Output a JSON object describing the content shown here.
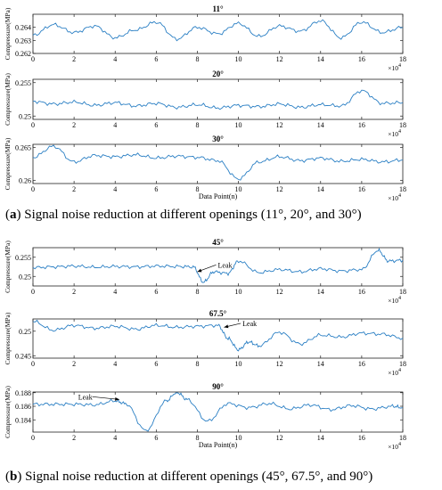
{
  "captions": [
    {
      "label": "a",
      "text": "Signal noise reduction at different openings (11°, 20°, and 30°)"
    },
    {
      "label": "b",
      "text": "Signal noise reduction at different openings (45°, 67.5°, and 90°)"
    }
  ],
  "chart_data": [
    {
      "type": "line",
      "title": "11°",
      "ylabel": "Compressure(MPa)",
      "xlabel": "",
      "xlim": [
        0,
        18
      ],
      "ylim": [
        0.262,
        0.265
      ],
      "yticks": [
        0.262,
        0.263,
        0.264
      ],
      "xticks": [
        0,
        2,
        4,
        6,
        8,
        10,
        12,
        14,
        16,
        18
      ],
      "x_exponent": "×10",
      "x_exponent_power": "4",
      "color": "#2a7fc4",
      "x": [
        0,
        1,
        2,
        3,
        4,
        5,
        6,
        7,
        8,
        9,
        10,
        11,
        12,
        13,
        14,
        15,
        16,
        17,
        18
      ],
      "values": [
        0.2634,
        0.2642,
        0.2636,
        0.2641,
        0.2632,
        0.2638,
        0.2644,
        0.2631,
        0.264,
        0.2635,
        0.2643,
        0.2633,
        0.2641,
        0.2637,
        0.2645,
        0.2632,
        0.2644,
        0.2636,
        0.264
      ],
      "annotations": []
    },
    {
      "type": "line",
      "title": "20°",
      "ylabel": "Compressure(MPa)",
      "xlabel": "",
      "xlim": [
        0,
        18
      ],
      "ylim": [
        0.2495,
        0.2555
      ],
      "yticks": [
        0.25,
        0.255
      ],
      "xticks": [
        0,
        2,
        4,
        6,
        8,
        10,
        12,
        14,
        16,
        18
      ],
      "x_exponent": "×10",
      "x_exponent_power": "4",
      "color": "#2a7fc4",
      "x": [
        0,
        1,
        2,
        3,
        4,
        5,
        6,
        7,
        8,
        9,
        10,
        11,
        12,
        13,
        14,
        15,
        16,
        17,
        18
      ],
      "values": [
        0.2522,
        0.2518,
        0.2521,
        0.2516,
        0.252,
        0.2515,
        0.2519,
        0.2513,
        0.2517,
        0.2512,
        0.2516,
        0.2514,
        0.2518,
        0.2513,
        0.2517,
        0.2515,
        0.2538,
        0.2519,
        0.252
      ],
      "annotations": []
    },
    {
      "type": "line",
      "title": "30°",
      "ylabel": "Compressure(MPa)",
      "xlabel": "Data Point(n)",
      "xlim": [
        0,
        18
      ],
      "ylim": [
        0.2595,
        0.2655
      ],
      "yticks": [
        0.26,
        0.265
      ],
      "xticks": [
        0,
        2,
        4,
        6,
        8,
        10,
        12,
        14,
        16,
        18
      ],
      "x_exponent": "×10",
      "x_exponent_power": "4",
      "color": "#2a7fc4",
      "x": [
        0,
        1,
        2,
        3,
        4,
        5,
        6,
        7,
        8,
        9,
        10,
        11,
        12,
        13,
        14,
        15,
        16,
        17,
        18
      ],
      "values": [
        0.2635,
        0.2652,
        0.2628,
        0.2638,
        0.2636,
        0.2639,
        0.2634,
        0.2637,
        0.2635,
        0.263,
        0.2602,
        0.2628,
        0.2636,
        0.263,
        0.2634,
        0.2629,
        0.2632,
        0.2628,
        0.2631
      ],
      "annotations": []
    },
    {
      "type": "line",
      "title": "45°",
      "ylabel": "Compressure(MPa)",
      "xlabel": "",
      "xlim": [
        0,
        18
      ],
      "ylim": [
        0.2475,
        0.2575
      ],
      "yticks": [
        0.25,
        0.255
      ],
      "xticks": [
        0,
        2,
        4,
        6,
        8,
        10,
        12,
        14,
        16,
        18
      ],
      "x_exponent": "×10",
      "x_exponent_power": "4",
      "color": "#2a7fc4",
      "x": [
        0,
        1,
        2,
        3,
        4,
        5,
        6,
        7,
        7.8,
        8.3,
        8.8,
        9.5,
        10,
        11,
        12,
        13,
        14,
        15,
        16,
        16.8,
        17.3,
        18
      ],
      "values": [
        0.2523,
        0.2525,
        0.2527,
        0.2524,
        0.2526,
        0.2525,
        0.2527,
        0.2526,
        0.2525,
        0.2485,
        0.2512,
        0.2508,
        0.254,
        0.251,
        0.2518,
        0.2512,
        0.252,
        0.2514,
        0.2518,
        0.2568,
        0.254,
        0.2542
      ],
      "annotations": [
        {
          "text": "Leak",
          "x": 8.0,
          "y": 0.2512,
          "text_x": 9.0,
          "text_y": 0.253
        }
      ]
    },
    {
      "type": "line",
      "title": "67.5°",
      "ylabel": "Compressure(MPa)",
      "xlabel": "",
      "xlim": [
        0,
        18
      ],
      "ylim": [
        0.2445,
        0.2525
      ],
      "yticks": [
        0.245,
        0.25
      ],
      "xticks": [
        0,
        2,
        4,
        6,
        8,
        10,
        12,
        14,
        16,
        18
      ],
      "x_exponent": "×10",
      "x_exponent_power": "4",
      "color": "#2a7fc4",
      "x": [
        0,
        1,
        2,
        3,
        4,
        5,
        6,
        7,
        8,
        9,
        9.5,
        10,
        10.5,
        11,
        12,
        13,
        14,
        15,
        16,
        17,
        18
      ],
      "values": [
        0.252,
        0.2502,
        0.2512,
        0.2506,
        0.251,
        0.2504,
        0.2512,
        0.2508,
        0.251,
        0.2512,
        0.2485,
        0.2462,
        0.2478,
        0.247,
        0.2498,
        0.2474,
        0.2492,
        0.2488,
        0.2496,
        0.2494,
        0.2486
      ],
      "annotations": [
        {
          "text": "Leak",
          "x": 9.3,
          "y": 0.2508,
          "text_x": 10.2,
          "text_y": 0.2516
        }
      ]
    },
    {
      "type": "line",
      "title": "90°",
      "ylabel": "Compressure(MPa)",
      "xlabel": "Data Point(n)",
      "xlim": [
        0,
        18
      ],
      "ylim": [
        0.1822,
        0.1881
      ],
      "yticks": [
        0.184,
        0.186,
        0.188
      ],
      "xticks": [
        0,
        2,
        4,
        6,
        8,
        10,
        12,
        14,
        16,
        18
      ],
      "x_exponent": "×10",
      "x_exponent_power": "4",
      "color": "#2a7fc4",
      "x": [
        0,
        1,
        2,
        3,
        4,
        4.5,
        5.5,
        6.5,
        7,
        7.5,
        8.5,
        9.5,
        10.5,
        11.5,
        12.5,
        13.5,
        14.5,
        15.5,
        16.5,
        17.5,
        18
      ],
      "values": [
        0.1863,
        0.1863,
        0.1863,
        0.1862,
        0.1868,
        0.1864,
        0.1824,
        0.1868,
        0.1881,
        0.187,
        0.1838,
        0.1864,
        0.1858,
        0.1864,
        0.1856,
        0.1862,
        0.1855,
        0.1861,
        0.1856,
        0.186,
        0.1858
      ],
      "annotations": [
        {
          "text": "Leak",
          "x": 4.2,
          "y": 0.187,
          "text_x": 2.2,
          "text_y": 0.1874
        }
      ]
    }
  ]
}
